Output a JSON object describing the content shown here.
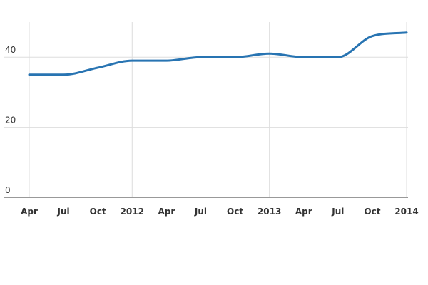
{
  "chart_data": {
    "type": "line",
    "title": "",
    "xlabel": "",
    "ylabel": "",
    "ylim": [
      0,
      50
    ],
    "yticks": [
      0,
      20,
      40
    ],
    "grid": true,
    "legend": "none",
    "x_tick_labels": [
      "Apr",
      "Jul",
      "Oct",
      "2012",
      "Apr",
      "Jul",
      "Oct",
      "2013",
      "Apr",
      "Jul",
      "Oct",
      "2014"
    ],
    "x": [
      "2011-04",
      "2011-07",
      "2011-10",
      "2012-01",
      "2012-04",
      "2012-07",
      "2012-10",
      "2013-01",
      "2013-04",
      "2013-07",
      "2013-10",
      "2014-01"
    ],
    "series": [
      {
        "color": "#2874b2",
        "values": [
          35,
          35,
          37,
          39,
          39,
          40,
          40,
          41,
          40,
          40,
          46,
          47
        ]
      }
    ]
  }
}
